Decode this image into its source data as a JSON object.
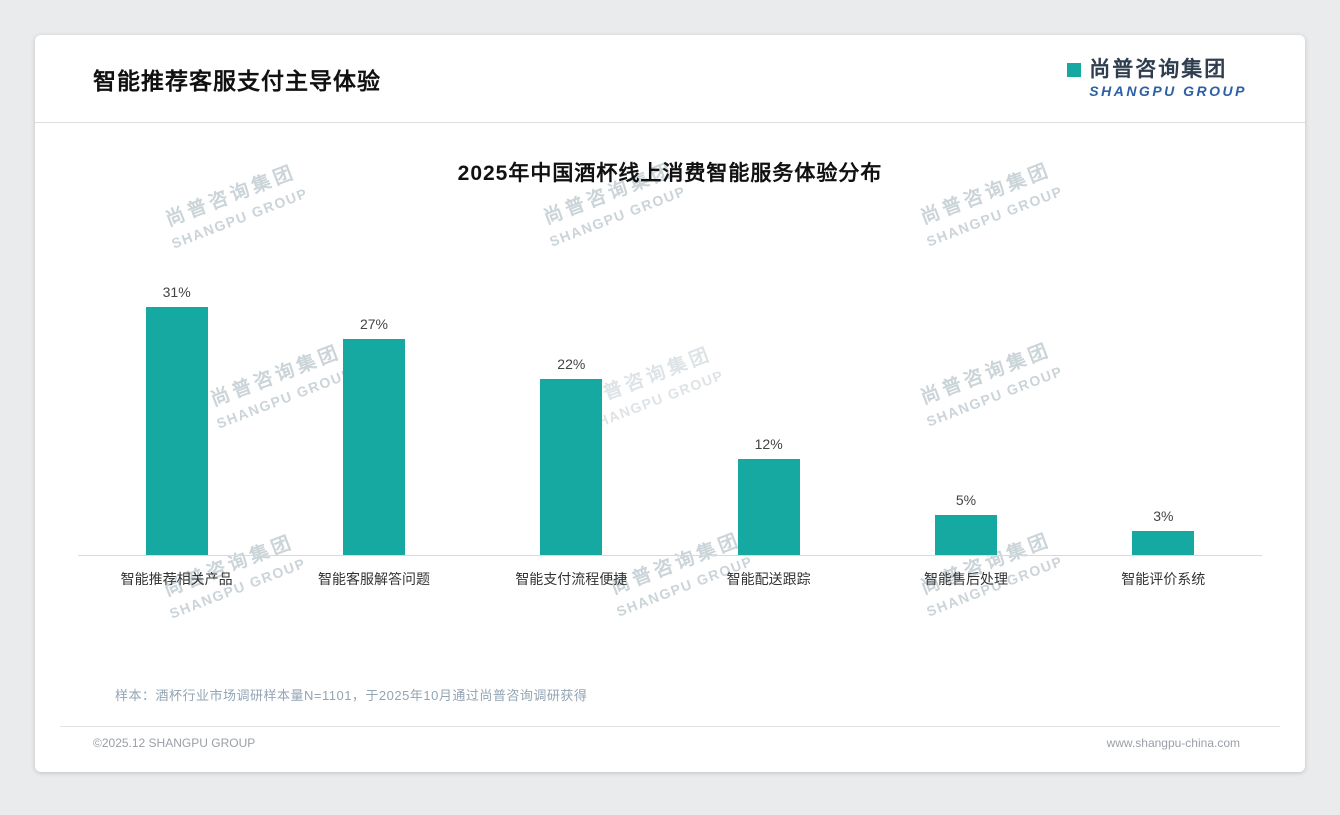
{
  "page": {
    "title": "智能推荐客服支付主导体验",
    "logo": {
      "cn": "尚普咨询集团",
      "en": "SHANGPU GROUP"
    },
    "watermark": {
      "cn": "尚普咨询集团",
      "en": "SHANGPU GROUP"
    },
    "footnote": "样本：酒杯行业市场调研样本量N=1101，于2025年10月通过尚普咨询调研获得",
    "footer_left": "©2025.12 SHANGPU GROUP",
    "footer_right": "www.shangpu-china.com"
  },
  "colors": {
    "accent_teal": "#15a9a2",
    "logo_blue": "#2b5fa7"
  },
  "chart_data": {
    "type": "bar",
    "title": "2025年中国酒杯线上消费智能服务体验分布",
    "categories": [
      "智能推荐相关产品",
      "智能客服解答问题",
      "智能支付流程便捷",
      "智能配送跟踪",
      "智能售后处理",
      "智能评价系统"
    ],
    "values": [
      31,
      27,
      22,
      12,
      5,
      3
    ],
    "unit": "%",
    "bar_color": "#15a9a2",
    "ylim": [
      0,
      35
    ],
    "grid": false,
    "value_labels": true,
    "legend": false,
    "xlabel": "",
    "ylabel": ""
  }
}
